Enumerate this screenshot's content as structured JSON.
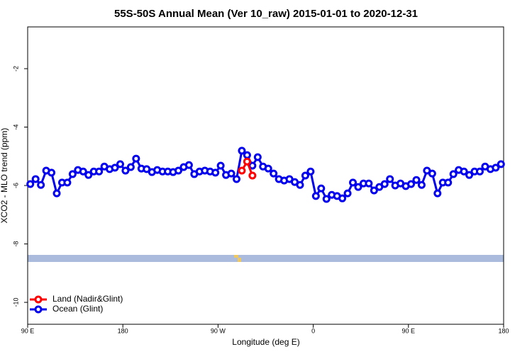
{
  "chart_data": {
    "type": "line",
    "title": "55S-50S Annual Mean (Ver 10_raw)   2015-01-01 to 2020-12-31",
    "x_label": "Longitude (deg E)",
    "y_label": "XCO2 - MLO trend (ppm)",
    "xlim": [
      90,
      540
    ],
    "ylim": [
      -10.75,
      -0.57
    ],
    "xticks": [
      {
        "value": 90,
        "label": "90 E"
      },
      180,
      {
        "value": 270,
        "label": "90 W"
      },
      {
        "value": 360,
        "label": "0"
      },
      {
        "value": 450,
        "label": "90 E"
      },
      {
        "value": 540,
        "label": "180"
      }
    ],
    "yticks": [
      -2,
      -4,
      -6,
      -8,
      -10
    ],
    "legend": "bottom-left",
    "series": [
      {
        "name": "Land (Nadir&Glint)",
        "color": "#ff0000",
        "x": [
          292.5,
          297.5,
          302.5
        ],
        "values": [
          -5.49,
          -5.18,
          -5.66
        ]
      },
      {
        "name": "Ocean (Glint)",
        "color": "#0000ee",
        "x": [
          92.5,
          97.5,
          102.5,
          107.5,
          112.5,
          117.5,
          122.5,
          127.5,
          132.5,
          137.5,
          142.5,
          147.5,
          152.5,
          157.5,
          162.5,
          167.5,
          172.5,
          177.5,
          182.5,
          187.5,
          192.5,
          197.5,
          202.5,
          207.5,
          212.5,
          217.5,
          222.5,
          227.5,
          232.5,
          237.5,
          242.5,
          247.5,
          252.5,
          257.5,
          262.5,
          267.5,
          272.5,
          277.5,
          282.5,
          287.5,
          292.5,
          297.5,
          302.5,
          307.5,
          312.5,
          317.5,
          322.5,
          327.5,
          332.5,
          337.5,
          342.5,
          347.5,
          352.5,
          357.5,
          362.5,
          367.5,
          372.5,
          377.5,
          382.5,
          387.5,
          392.5,
          397.5,
          402.5,
          407.5,
          412.5,
          417.5,
          422.5,
          427.5,
          432.5,
          437.5,
          442.5,
          447.5,
          452.5,
          457.5,
          462.5,
          467.5,
          472.5,
          477.5,
          482.5,
          487.5,
          492.5,
          497.5,
          502.5,
          507.5,
          512.5,
          517.5,
          522.5,
          527.5,
          532.5,
          537.5
        ],
        "values": [
          -5.95,
          -5.78,
          -5.98,
          -5.49,
          -5.56,
          -6.27,
          -5.9,
          -5.9,
          -5.61,
          -5.47,
          -5.52,
          -5.64,
          -5.52,
          -5.52,
          -5.35,
          -5.44,
          -5.39,
          -5.27,
          -5.49,
          -5.37,
          -5.08,
          -5.42,
          -5.44,
          -5.54,
          -5.47,
          -5.52,
          -5.52,
          -5.54,
          -5.49,
          -5.37,
          -5.3,
          -5.61,
          -5.52,
          -5.49,
          -5.52,
          -5.56,
          -5.32,
          -5.64,
          -5.59,
          -5.78,
          -4.81,
          -4.96,
          -5.32,
          -5.03,
          -5.35,
          -5.42,
          -5.59,
          -5.78,
          -5.83,
          -5.78,
          -5.88,
          -5.98,
          -5.66,
          -5.52,
          -6.36,
          -6.1,
          -6.46,
          -6.32,
          -6.36,
          -6.44,
          -6.27,
          -5.9,
          -6.05,
          -5.93,
          -5.93,
          -6.17,
          -6.05,
          -5.95,
          -5.78,
          -6.0,
          -5.93,
          -6.02,
          -5.95,
          -5.81,
          -5.98,
          -5.49,
          -5.59,
          -6.27,
          -5.9,
          -5.9,
          -5.61,
          -5.47,
          -5.52,
          -5.64,
          -5.52,
          -5.52,
          -5.35,
          -5.44,
          -5.39,
          -5.27
        ]
      }
    ]
  }
}
